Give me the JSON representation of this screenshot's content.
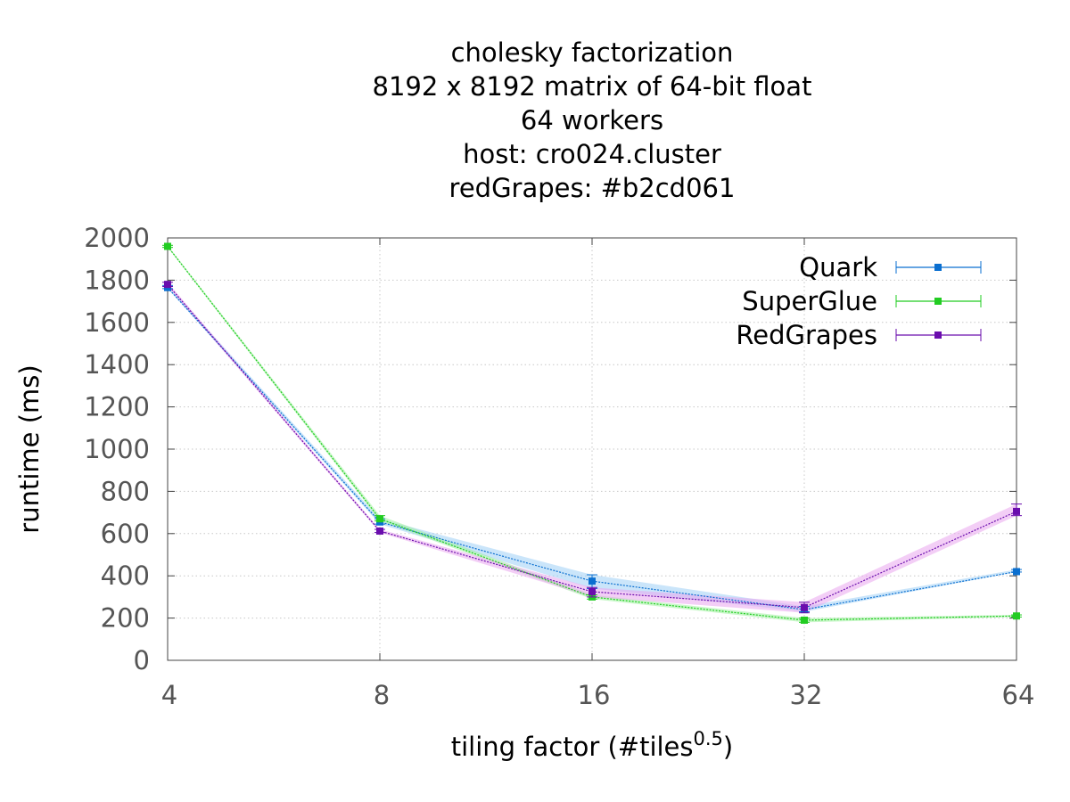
{
  "chart_data": {
    "type": "line",
    "title_lines": [
      "cholesky factorization",
      "8192 x 8192 matrix of 64-bit float",
      "64 workers",
      "host: cro024.cluster",
      "redGrapes: #b2cd061"
    ],
    "xlabel": "tiling factor (#tiles",
    "xlabel_sup": "0.5",
    "xlabel_end": ")",
    "ylabel": "runtime (ms)",
    "x_scale": "log2",
    "x": [
      4,
      8,
      16,
      32,
      64
    ],
    "x_tick_labels": [
      "4",
      "8",
      "16",
      "32",
      "64"
    ],
    "xlim": [
      4,
      64
    ],
    "ylim": [
      0,
      2000
    ],
    "y_ticks": [
      0,
      200,
      400,
      600,
      800,
      1000,
      1200,
      1400,
      1600,
      1800,
      2000
    ],
    "grid": true,
    "legend_position": "top-right",
    "series": [
      {
        "name": "Quark",
        "color": "#0a6fd0",
        "band_color": "#9fd0f5",
        "values": [
          1765,
          655,
          375,
          240,
          420
        ],
        "lower": [
          1760,
          645,
          340,
          230,
          418
        ],
        "upper": [
          1775,
          670,
          405,
          255,
          430
        ]
      },
      {
        "name": "SuperGlue",
        "color": "#22cc22",
        "band_color": "#9ef09e",
        "values": [
          1960,
          670,
          300,
          190,
          210
        ],
        "lower": [
          1955,
          660,
          290,
          180,
          205
        ],
        "upper": [
          1965,
          685,
          310,
          200,
          215
        ]
      },
      {
        "name": "RedGrapes",
        "color": "#6a0dad",
        "band_color": "#e9a6ee",
        "values": [
          1780,
          612,
          325,
          250,
          705
        ],
        "lower": [
          1770,
          605,
          300,
          225,
          685
        ],
        "upper": [
          1790,
          620,
          345,
          275,
          740
        ]
      }
    ]
  }
}
